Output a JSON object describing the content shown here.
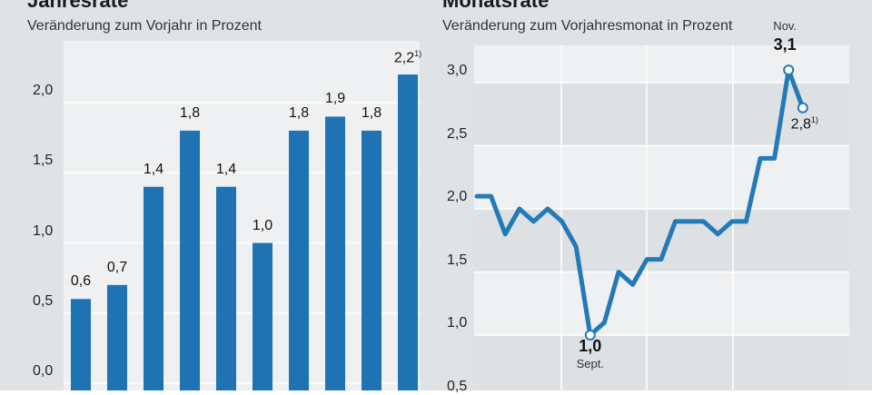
{
  "colors": {
    "bar": "#1f73b2",
    "line": "#2479b8",
    "panel_bg": "#dfe3e6",
    "plot_bg_light": "#eef0f2",
    "plot_bg_dark": "#dde1e4",
    "grid": "#ffffff"
  },
  "chart_data": [
    {
      "type": "bar",
      "title": "Jahresrate",
      "subtitle": "Veränderung zum Vorjahr in Prozent",
      "values": [
        0.6,
        0.7,
        1.4,
        1.8,
        1.4,
        1.0,
        1.8,
        1.9,
        1.8,
        2.2
      ],
      "value_labels": [
        "0,6",
        "0,7",
        "1,4",
        "1,8",
        "1,4",
        "1,0",
        "1,8",
        "1,9",
        "1,8",
        "2,2"
      ],
      "footnote_marks": [
        "",
        "",
        "",
        "",
        "",
        "",
        "",
        "",
        "",
        "1)"
      ],
      "yticks": [
        0.0,
        0.5,
        1.0,
        1.5,
        2.0
      ],
      "ytick_labels": [
        "0,0",
        "0,5",
        "1,0",
        "1,5",
        "2,0"
      ],
      "ylim": [
        0,
        2.5
      ],
      "grid": true
    },
    {
      "type": "line",
      "title": "Monatsrate",
      "subtitle": "Veränderung zum Vorjahresmonat in Prozent",
      "values": [
        2.1,
        2.1,
        1.8,
        2.0,
        1.9,
        2.0,
        1.9,
        1.7,
        1.0,
        1.1,
        1.5,
        1.4,
        1.6,
        1.6,
        1.9,
        1.9,
        1.9,
        1.8,
        1.9,
        1.9,
        2.4,
        2.4,
        3.1,
        2.8
      ],
      "yticks": [
        0.5,
        1.0,
        1.5,
        2.0,
        2.5,
        3.0
      ],
      "ytick_labels": [
        "0,5",
        "1,0",
        "1,5",
        "2,0",
        "2,5",
        "3,0"
      ],
      "ylim": [
        0.4,
        3.4
      ],
      "grid": true,
      "annotations": [
        {
          "index": 8,
          "value_label": "1,0",
          "month_label": "Sept.",
          "footnote": ""
        },
        {
          "index": 22,
          "value_label": "3,1",
          "month_label": "Nov.",
          "footnote": ""
        },
        {
          "index": 23,
          "value_label": "2,8",
          "month_label": "",
          "footnote": "1)"
        }
      ]
    }
  ]
}
